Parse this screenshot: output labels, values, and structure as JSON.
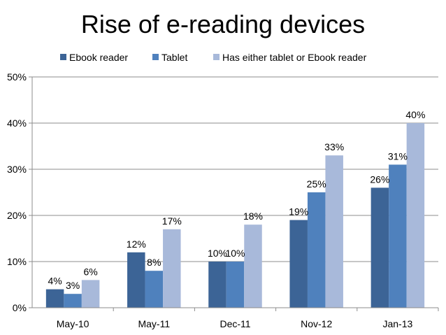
{
  "chart_data": {
    "type": "bar",
    "title": "Rise of e-reading devices",
    "categories": [
      "May-10",
      "May-11",
      "Dec-11",
      "Nov-12",
      "Jan-13"
    ],
    "series": [
      {
        "name": "Ebook reader",
        "color": "#3C6496",
        "values": [
          4,
          12,
          10,
          19,
          26
        ],
        "labels": [
          "4%",
          "12%",
          "10%",
          "19%",
          "26%"
        ]
      },
      {
        "name": "Tablet",
        "color": "#4F81BD",
        "values": [
          3,
          8,
          10,
          25,
          31
        ],
        "labels": [
          "3%",
          "8%",
          "10%",
          "25%",
          "31%"
        ]
      },
      {
        "name": "Has either tablet or Ebook reader",
        "color": "#A8B9DA",
        "values": [
          6,
          17,
          18,
          33,
          40
        ],
        "labels": [
          "6%",
          "17%",
          "18%",
          "33%",
          "40%"
        ]
      }
    ],
    "ylim": [
      0,
      50
    ],
    "yticks": [
      0,
      10,
      20,
      30,
      40,
      50
    ],
    "ytick_labels": [
      "0%",
      "10%",
      "20%",
      "30%",
      "40%",
      "50%"
    ],
    "xlabel": "",
    "ylabel": "",
    "grid": true,
    "legend_position": "top"
  }
}
